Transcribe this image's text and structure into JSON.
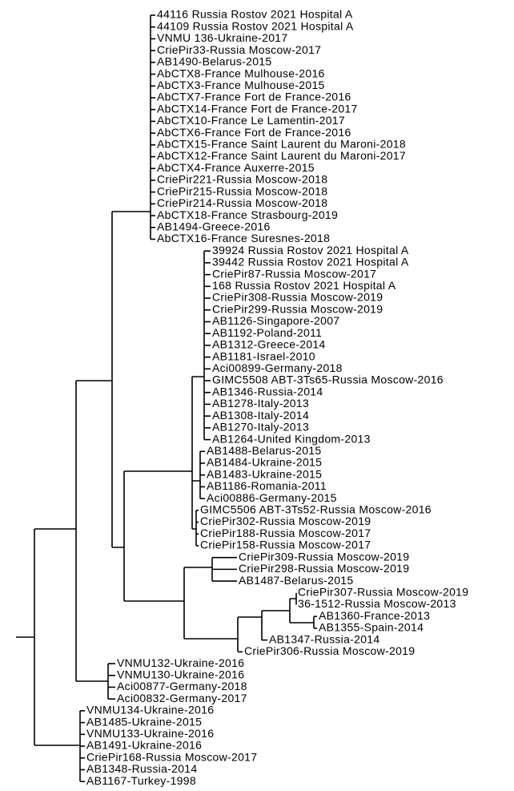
{
  "leaves": [
    "44116 Russia Rostov 2021 Hospital A",
    "44109 Russia Rostov 2021 Hospital A",
    "VNMU 136-Ukraine-2017",
    "CriePir33-Russia Moscow-2017",
    "AB1490-Belarus-2015",
    "AbCTX8-France Mulhouse-2016",
    "AbCTX3-France Mulhouse-2015",
    "AbCTX7-France Fort de France-2016",
    "AbCTX14-France Fort de France-2017",
    "AbCTX10-France Le Lamentin-2017",
    "AbCTX6-France Fort de France-2016",
    "AbCTX15-France Saint Laurent du Maroni-2018",
    "AbCTX12-France Saint Laurent du Maroni-2017",
    "AbCTX4-France Auxerre-2015",
    "CriePir221-Russia Moscow-2018",
    "CriePir215-Russia Moscow-2018",
    "CriePir214-Russia Moscow-2018",
    "AbCTX18-France Strasbourg-2019",
    "AB1494-Greece-2016",
    "AbCTX16-France Suresnes-2018",
    "39924 Russia Rostov 2021 Hospital A",
    "39442 Russia Rostov 2021 Hospital A",
    "CriePir87-Russia Moscow-2017",
    "168 Russia Rostov 2021 Hospital A",
    "CriePir308-Russia Moscow-2019",
    "CriePir299-Russia Moscow-2019",
    "AB1126-Singapore-2007",
    "AB1192-Poland-2011",
    "AB1312-Greece-2014",
    "AB1181-Israel-2010",
    "Aci00899-Germany-2018",
    "GIMC5508 ABT-3Ts65-Russia Moscow-2016",
    "AB1346-Russia-2014",
    "AB1278-Italy-2013",
    "AB1308-Italy-2014",
    "AB1270-Italy-2013",
    "AB1264-United Kingdom-2013",
    "AB1488-Belarus-2015",
    "AB1484-Ukraine-2015",
    "AB1483-Ukraine-2015",
    "AB1186-Romania-2011",
    "Aci00886-Germany-2015",
    "GIMC5506 ABT-3Ts52-Russia Moscow-2016",
    "CriePir302-Russia Moscow-2019",
    "CriePir188-Russia Moscow-2017",
    "CriePir158-Russia Moscow-2017",
    "CriePir309-Russia Moscow-2019",
    "CriePir298-Russia Moscow-2019",
    "AB1487-Belarus-2015",
    "CriePir307-Russia Moscow-2019",
    "36-1512-Russia Moscow-2013",
    "AB1360-France-2013",
    "AB1355-Spain-2014",
    "AB1347-Russia-2014",
    "CriePir306-Russia Moscow-2019",
    "VNMU132-Ukraine-2016",
    "VNMU130-Ukraine-2016",
    "Aci00877-Germany-2018",
    "Aci00832-Germany-2017",
    "VNMU134-Ukraine-2016",
    "AB1485-Ukraine-2015",
    "VNMU133-Ukraine-2016",
    "AB1491-Ukraine-2016",
    "CriePir168-Russia Moscow-2017",
    "AB1348-Russia-2014",
    "AB1167-Turkey-1998"
  ]
}
